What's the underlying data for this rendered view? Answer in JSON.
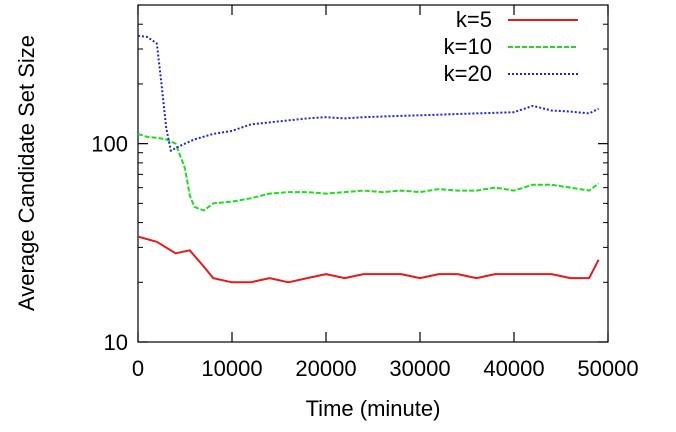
{
  "chart_data": {
    "type": "line",
    "title": "",
    "xlabel": "Time (minute)",
    "ylabel": "Average Candidate Set Size",
    "xlim": [
      0,
      50000
    ],
    "ylim": [
      10,
      500
    ],
    "yscale": "log",
    "xticks": [
      0,
      10000,
      20000,
      30000,
      40000,
      50000
    ],
    "xtick_labels": [
      "0",
      "10000",
      "20000",
      "30000",
      "40000",
      "50000"
    ],
    "yticks": [
      10,
      100
    ],
    "ytick_labels": [
      "10",
      "100"
    ],
    "grid": false,
    "legend_position": "top-right",
    "series": [
      {
        "name": "k=5",
        "color": "#e41a1c",
        "style": "solid",
        "x": [
          0,
          2000,
          4000,
          5500,
          7000,
          8000,
          10000,
          12000,
          14000,
          16000,
          18000,
          20000,
          22000,
          24000,
          26000,
          28000,
          30000,
          32000,
          34000,
          36000,
          38000,
          40000,
          42000,
          44000,
          46000,
          48000,
          49000
        ],
        "values": [
          34,
          32,
          28,
          29,
          24,
          21,
          20,
          20,
          21,
          20,
          21,
          22,
          21,
          22,
          22,
          22,
          21,
          22,
          22,
          21,
          22,
          22,
          22,
          22,
          21,
          21,
          26
        ]
      },
      {
        "name": "k=10",
        "color": "#1fdc1f",
        "style": "dashed",
        "x": [
          0,
          1000,
          2000,
          3000,
          4000,
          5000,
          5500,
          6000,
          7000,
          8000,
          10000,
          12000,
          14000,
          16000,
          18000,
          20000,
          22000,
          24000,
          26000,
          28000,
          30000,
          32000,
          34000,
          36000,
          38000,
          40000,
          42000,
          44000,
          46000,
          48000,
          49000
        ],
        "values": [
          112,
          108,
          107,
          105,
          100,
          75,
          55,
          48,
          46,
          50,
          51,
          53,
          56,
          57,
          57,
          56,
          57,
          58,
          57,
          58,
          57,
          59,
          58,
          58,
          60,
          58,
          62,
          62,
          60,
          58,
          63
        ]
      },
      {
        "name": "k=20",
        "color": "#2323c8",
        "style": "dotted",
        "x": [
          0,
          1000,
          2000,
          2500,
          3000,
          3500,
          4000,
          5000,
          6000,
          8000,
          10000,
          12000,
          14000,
          16000,
          18000,
          20000,
          22000,
          24000,
          26000,
          28000,
          30000,
          32000,
          34000,
          36000,
          38000,
          40000,
          42000,
          44000,
          46000,
          48000,
          49000
        ],
        "values": [
          350,
          345,
          320,
          200,
          120,
          92,
          95,
          100,
          105,
          112,
          116,
          125,
          128,
          131,
          134,
          136,
          134,
          136,
          137,
          138,
          139,
          140,
          141,
          142,
          143,
          144,
          155,
          147,
          145,
          142,
          150
        ]
      }
    ]
  }
}
